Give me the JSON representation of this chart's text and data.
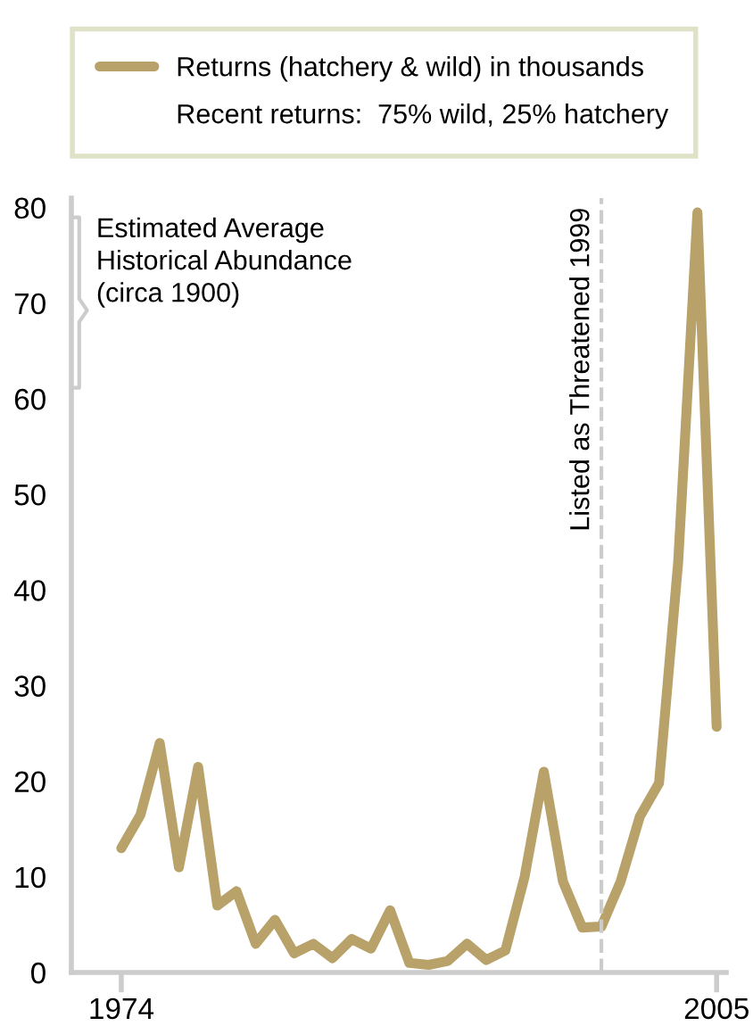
{
  "chart_data": {
    "type": "line",
    "x": [
      1974,
      1975,
      1976,
      1977,
      1978,
      1979,
      1980,
      1981,
      1982,
      1983,
      1984,
      1985,
      1986,
      1987,
      1988,
      1989,
      1990,
      1991,
      1992,
      1993,
      1994,
      1995,
      1996,
      1997,
      1998,
      1999,
      2000,
      2001,
      2002,
      2003,
      2004,
      2005
    ],
    "series": [
      {
        "name": "Returns (hatchery & wild) in thousands",
        "color": "#b8a26a",
        "values": [
          13,
          16.5,
          24,
          11,
          21.5,
          7,
          8.5,
          3,
          5.5,
          2,
          3,
          1.5,
          3.5,
          2.5,
          6.5,
          1,
          0.8,
          1.2,
          3,
          1.3,
          2.3,
          10,
          21,
          9.5,
          4.7,
          4.8,
          9.5,
          16.3,
          19.8,
          43,
          79.5,
          25.7
        ]
      }
    ],
    "xlim": [
      1971.4,
      2005.5
    ],
    "xticks": [
      1974,
      2005
    ],
    "ylim": [
      0,
      81
    ],
    "yticks": [
      0,
      10,
      20,
      30,
      40,
      50,
      60,
      70,
      80
    ],
    "ref_lines": [
      {
        "axis": "x",
        "value": 1999,
        "label": "Listed as Threatened 1999",
        "color": "#cccccc",
        "line_style": "dashed"
      }
    ],
    "annotations": [
      "Estimated Average\nHistorical Abundance\n(circa 1900)",
      "Recent returns:  75% wild, 25% hatchery"
    ],
    "legend": "top",
    "grid": false,
    "marker": "none",
    "line_style": "solid"
  }
}
